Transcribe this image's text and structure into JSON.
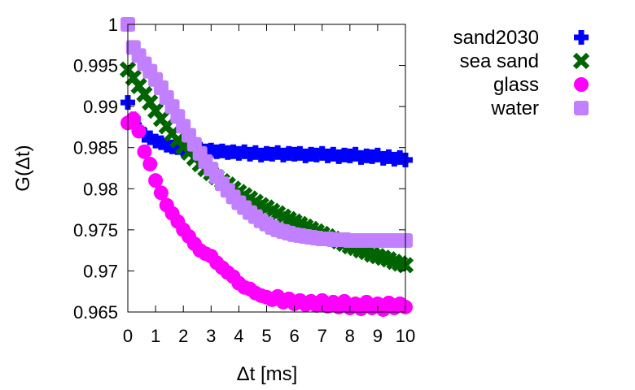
{
  "chart_data": {
    "type": "scatter",
    "title": "",
    "xlabel": "Δt [ms]",
    "ylabel": "G(Δt)",
    "xlim": [
      0,
      10
    ],
    "ylim": [
      0.965,
      1.0
    ],
    "x_ticks": [
      "0",
      "1",
      "2",
      "3",
      "4",
      "5",
      "6",
      "7",
      "8",
      "9",
      "10"
    ],
    "y_ticks": [
      "0.965",
      "0.97",
      "0.975",
      "0.98",
      "0.985",
      "0.99",
      "0.995",
      "1"
    ],
    "legend_position": "outside-right",
    "grid": false,
    "series": [
      {
        "name": "sand2030",
        "color": "#0000ff",
        "marker": "plus",
        "x": [
          0,
          0.2,
          0.4,
          0.6,
          0.8,
          1,
          1.2,
          1.4,
          1.6,
          1.8,
          2,
          2.2,
          2.4,
          2.6,
          2.8,
          3,
          3.2,
          3.4,
          3.6,
          3.8,
          4,
          4.2,
          4.4,
          4.6,
          4.8,
          5,
          5.2,
          5.4,
          5.6,
          5.8,
          6,
          6.2,
          6.4,
          6.6,
          6.8,
          7,
          7.2,
          7.4,
          7.6,
          7.8,
          8,
          8.2,
          8.4,
          8.6,
          8.8,
          9,
          9.2,
          9.4,
          9.6,
          9.8,
          10
        ],
        "y": [
          0.9905,
          0.9885,
          0.9872,
          0.9865,
          0.9862,
          0.9858,
          0.9856,
          0.9853,
          0.9851,
          0.985,
          0.9848,
          0.9849,
          0.9847,
          0.9848,
          0.9846,
          0.9847,
          0.9845,
          0.9846,
          0.9844,
          0.9845,
          0.9843,
          0.9845,
          0.9842,
          0.9844,
          0.9841,
          0.9843,
          0.9842,
          0.9844,
          0.9841,
          0.9843,
          0.9842,
          0.9843,
          0.984,
          0.9842,
          0.9841,
          0.9843,
          0.984,
          0.9842,
          0.9839,
          0.9841,
          0.984,
          0.9842,
          0.9838,
          0.984,
          0.9839,
          0.9841,
          0.9837,
          0.9839,
          0.9836,
          0.9838,
          0.9835
        ]
      },
      {
        "name": "sea sand",
        "color": "#006400",
        "marker": "cross",
        "x": [
          0,
          0.2,
          0.4,
          0.6,
          0.8,
          1,
          1.2,
          1.4,
          1.6,
          1.8,
          2,
          2.2,
          2.4,
          2.6,
          2.8,
          3,
          3.2,
          3.4,
          3.6,
          3.8,
          4,
          4.2,
          4.4,
          4.6,
          4.8,
          5,
          5.2,
          5.4,
          5.6,
          5.8,
          6,
          6.2,
          6.4,
          6.6,
          6.8,
          7,
          7.2,
          7.4,
          7.6,
          7.8,
          8,
          8.2,
          8.4,
          8.6,
          8.8,
          9,
          9.2,
          9.4,
          9.6,
          9.8,
          10
        ],
        "y": [
          0.9945,
          0.9935,
          0.9925,
          0.9915,
          0.9905,
          0.9895,
          0.9885,
          0.9876,
          0.9867,
          0.9859,
          0.9851,
          0.9844,
          0.9837,
          0.983,
          0.9824,
          0.9819,
          0.9814,
          0.9809,
          0.9805,
          0.98,
          0.9796,
          0.9792,
          0.9788,
          0.9784,
          0.978,
          0.9777,
          0.9773,
          0.977,
          0.9766,
          0.9763,
          0.976,
          0.9757,
          0.9754,
          0.9751,
          0.9748,
          0.9745,
          0.9742,
          0.9739,
          0.9736,
          0.9733,
          0.973,
          0.9728,
          0.9725,
          0.9723,
          0.972,
          0.9718,
          0.9716,
          0.9714,
          0.9711,
          0.9709,
          0.9707
        ]
      },
      {
        "name": "glass",
        "color": "#ff00ff",
        "marker": "filled-circle",
        "x": [
          0,
          0.2,
          0.4,
          0.6,
          0.8,
          1,
          1.2,
          1.4,
          1.6,
          1.8,
          2,
          2.2,
          2.4,
          2.6,
          2.8,
          3,
          3.2,
          3.4,
          3.6,
          3.8,
          4,
          4.2,
          4.4,
          4.6,
          4.8,
          5,
          5.2,
          5.4,
          5.6,
          5.8,
          6,
          6.2,
          6.4,
          6.6,
          6.8,
          7,
          7.2,
          7.4,
          7.6,
          7.8,
          8,
          8.2,
          8.4,
          8.6,
          8.8,
          9,
          9.2,
          9.4,
          9.6,
          9.8,
          10
        ],
        "y": [
          0.988,
          0.9885,
          0.987,
          0.9845,
          0.983,
          0.981,
          0.9795,
          0.978,
          0.977,
          0.976,
          0.975,
          0.9742,
          0.9733,
          0.9725,
          0.9721,
          0.9718,
          0.971,
          0.9704,
          0.9698,
          0.9693,
          0.9685,
          0.968,
          0.9678,
          0.9673,
          0.967,
          0.9668,
          0.9665,
          0.9669,
          0.9662,
          0.9666,
          0.966,
          0.9664,
          0.9659,
          0.9663,
          0.9658,
          0.9664,
          0.9657,
          0.9662,
          0.9656,
          0.9663,
          0.9655,
          0.966,
          0.9654,
          0.9662,
          0.9655,
          0.966,
          0.9653,
          0.9661,
          0.9655,
          0.966,
          0.9656
        ]
      },
      {
        "name": "water",
        "color": "#c080ff",
        "marker": "filled-square",
        "x": [
          0,
          0.2,
          0.4,
          0.6,
          0.8,
          1,
          1.2,
          1.4,
          1.6,
          1.8,
          2,
          2.2,
          2.4,
          2.6,
          2.8,
          3,
          3.2,
          3.4,
          3.6,
          3.8,
          4,
          4.2,
          4.4,
          4.6,
          4.8,
          5,
          5.2,
          5.4,
          5.6,
          5.8,
          6,
          6.2,
          6.4,
          6.6,
          6.8,
          7,
          7.2,
          7.4,
          7.6,
          7.8,
          8,
          8.2,
          8.4,
          8.6,
          8.8,
          9,
          9.2,
          9.4,
          9.6,
          9.8,
          10
        ],
        "y": [
          1.0,
          0.9972,
          0.9962,
          0.9952,
          0.9943,
          0.9933,
          0.9923,
          0.9911,
          0.99,
          0.9888,
          0.9876,
          0.9865,
          0.9854,
          0.9843,
          0.9833,
          0.9824,
          0.9815,
          0.9806,
          0.9798,
          0.979,
          0.9783,
          0.9777,
          0.9771,
          0.9766,
          0.9761,
          0.9757,
          0.9753,
          0.975,
          0.9748,
          0.9746,
          0.9744,
          0.9743,
          0.9742,
          0.9741,
          0.974,
          0.9739,
          0.9739,
          0.9738,
          0.9738,
          0.9738,
          0.9737,
          0.9737,
          0.9737,
          0.9737,
          0.9737,
          0.9737,
          0.9737,
          0.9737,
          0.9737,
          0.9737,
          0.9737
        ]
      }
    ]
  }
}
